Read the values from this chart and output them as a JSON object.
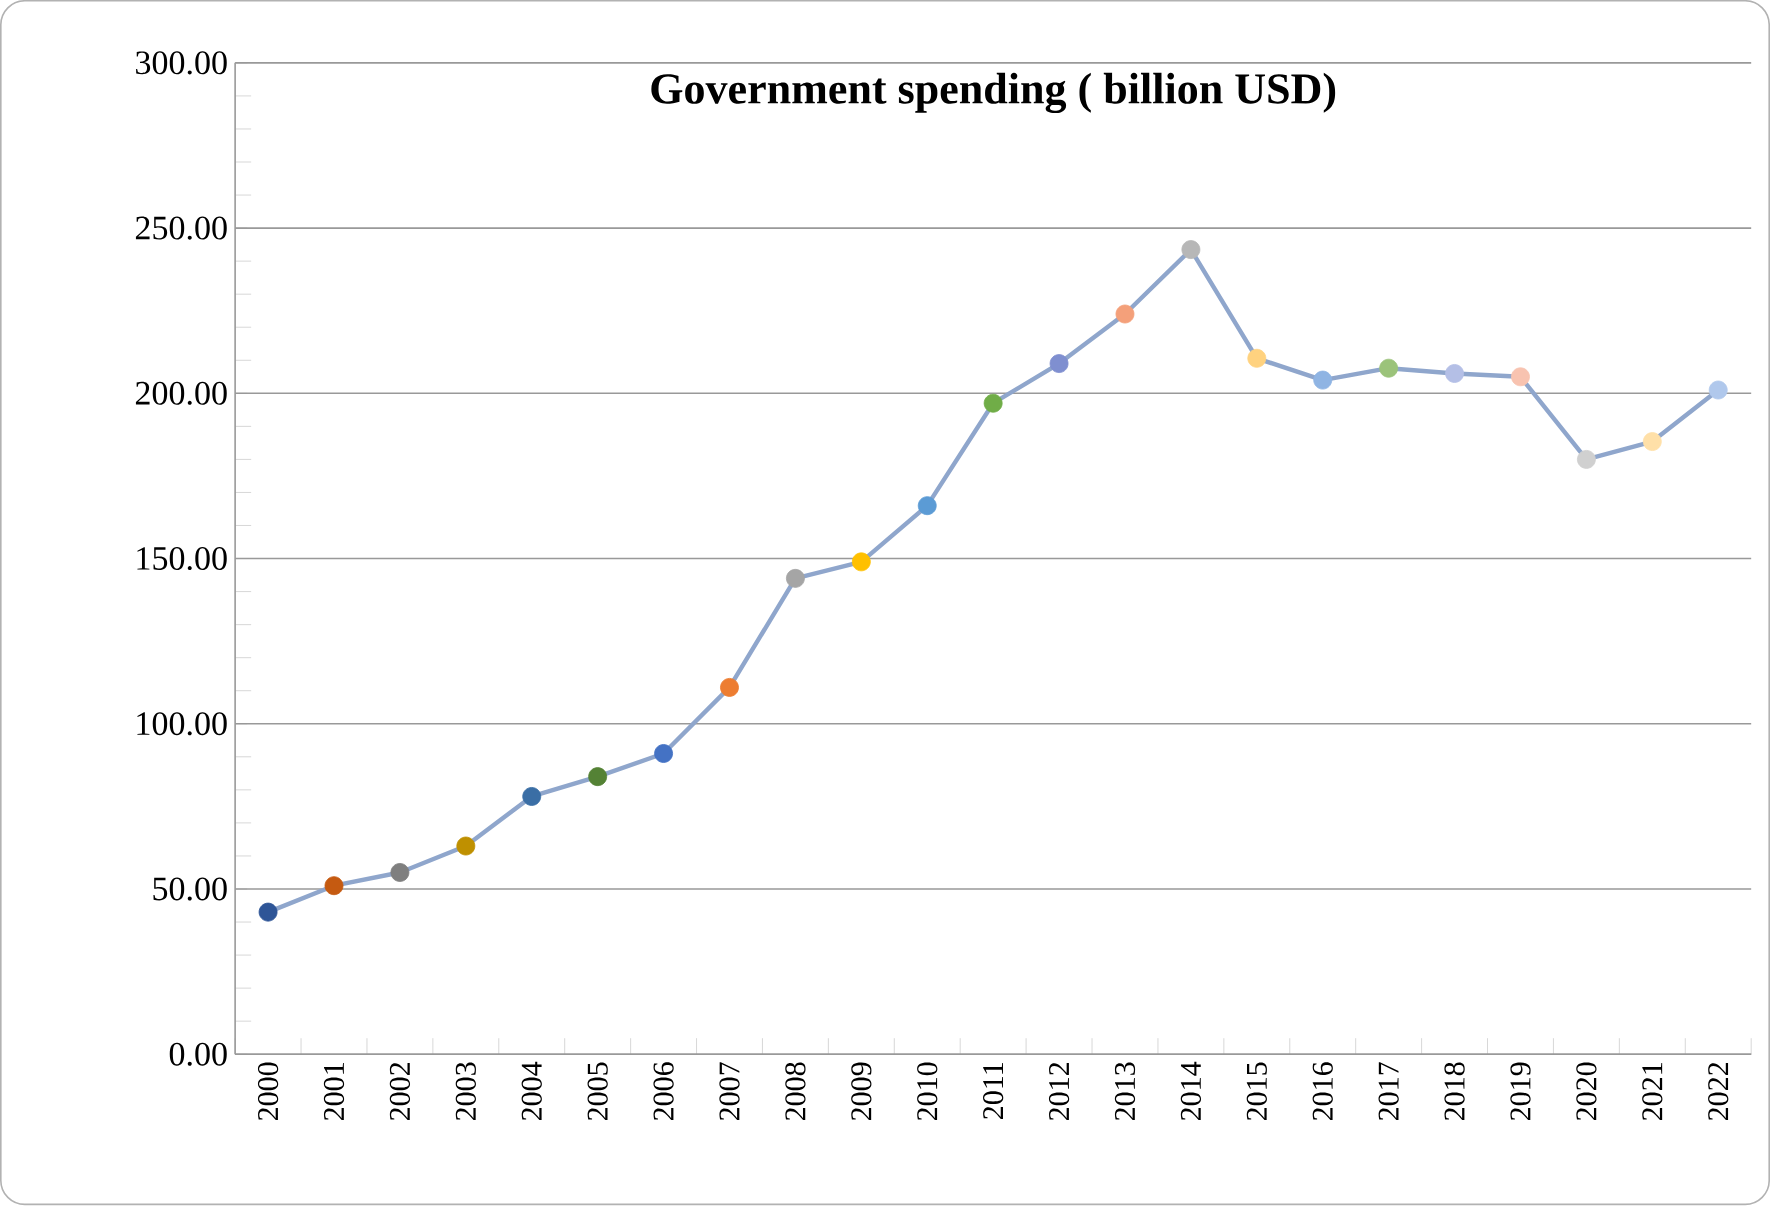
{
  "chart_data": {
    "type": "line",
    "title": "Government spending ( billion USD)",
    "categories": [
      "2000",
      "2001",
      "2002",
      "2003",
      "2004",
      "2005",
      "2006",
      "2007",
      "2008",
      "2009",
      "2010",
      "2011",
      "2012",
      "2013",
      "2014",
      "2015",
      "2016",
      "2017",
      "2018",
      "2019",
      "2020",
      "2021",
      "2022"
    ],
    "series": [
      {
        "color": "#8fa6cc",
        "values": [
          43,
          51,
          55,
          63,
          78,
          84,
          91,
          111,
          144,
          149,
          166,
          197,
          209,
          224,
          243.5,
          210.6,
          204,
          207.6,
          206,
          205,
          180,
          185.4,
          201
        ],
        "colors": [
          "#2e5597",
          "#c55a11",
          "#7f7f7f",
          "#bf9000",
          "#3a6ea5",
          "#548235",
          "#4472c4",
          "#ed7d31",
          "#a5a5a5",
          "#ffc000",
          "#5b9bd5",
          "#70ad47",
          "#7f8fd0",
          "#f4a07a",
          "#b7b7b7",
          "#ffd27f",
          "#8fb4e3",
          "#9bc37a",
          "#b4bfe6",
          "#f8c3b0",
          "#d0d0d0",
          "#ffe0a8",
          "#b0c8ec"
        ]
      }
    ],
    "ylim": [
      0,
      300
    ],
    "yticks": [
      {
        "value": 0,
        "label": "0.00"
      },
      {
        "value": 50,
        "label": "50.00"
      },
      {
        "value": 100,
        "label": "100.00"
      },
      {
        "value": 150,
        "label": "150.00"
      },
      {
        "value": 200,
        "label": "200.00"
      },
      {
        "value": 250,
        "label": "250.00"
      },
      {
        "value": 300,
        "label": "300.00"
      }
    ],
    "grid": "y",
    "marker": "circle",
    "line_style": "solid"
  }
}
